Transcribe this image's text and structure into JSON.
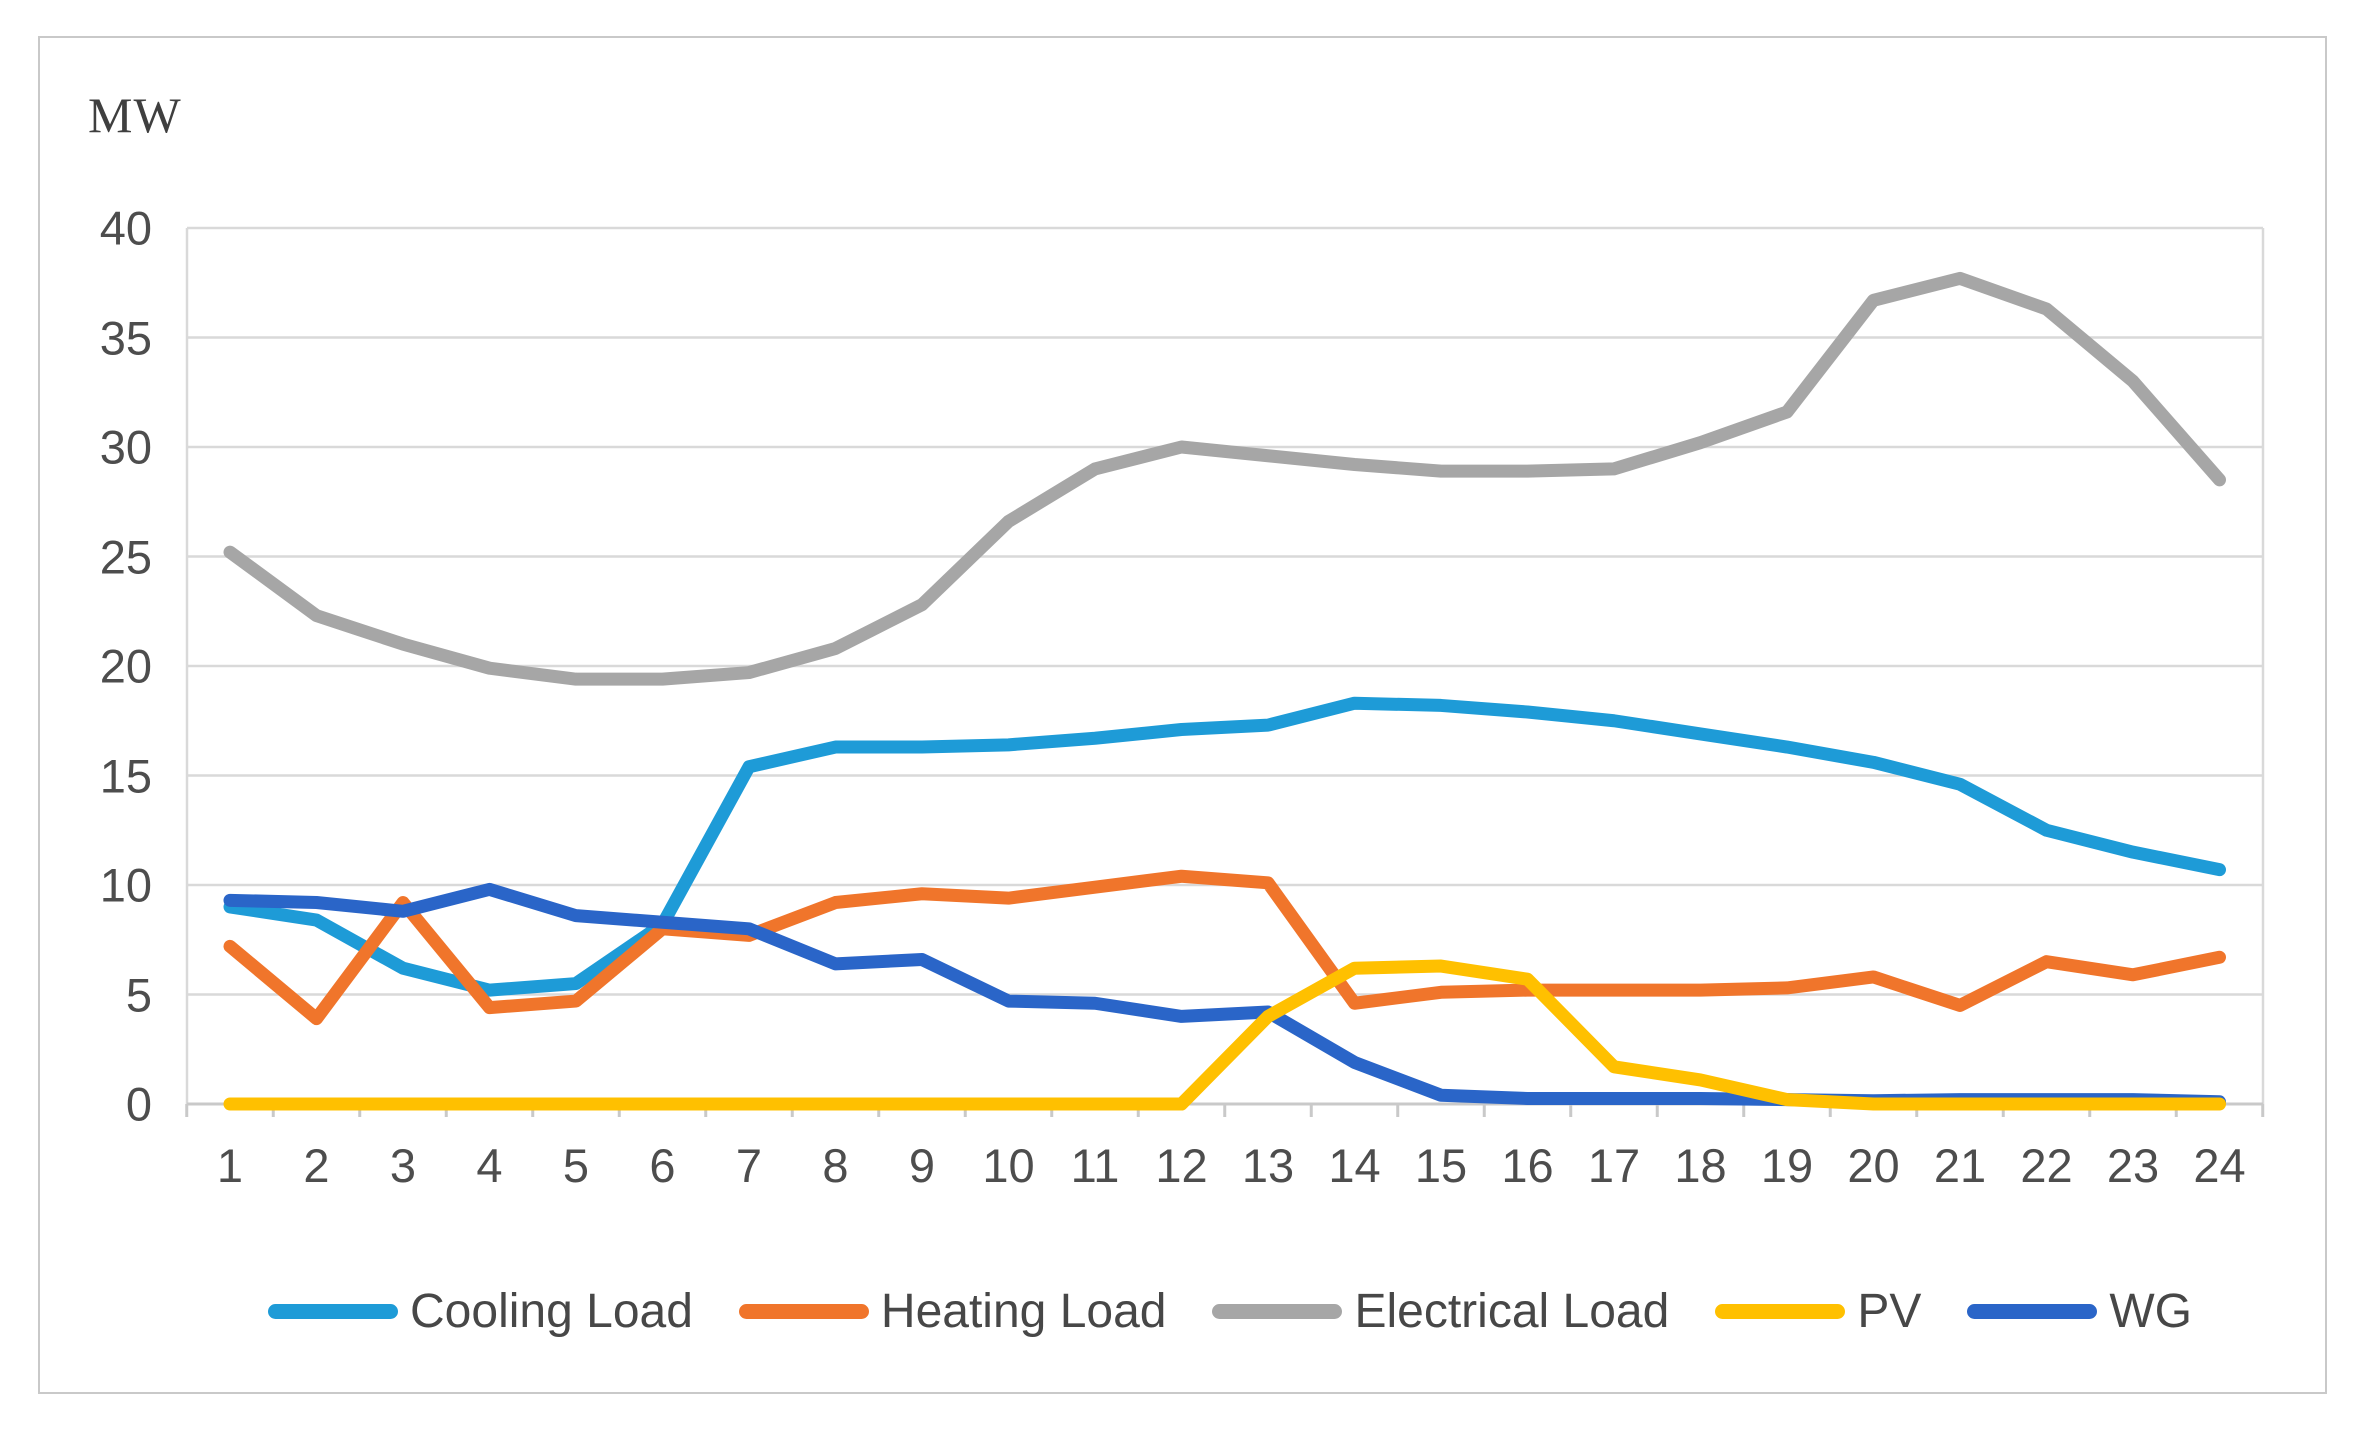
{
  "figure": {
    "border_color": "#c9c9c9",
    "background": "#ffffff"
  },
  "chart_data": {
    "type": "line",
    "title": "",
    "ylabel": "MW",
    "xlabel": "",
    "ylim": [
      0,
      40
    ],
    "ytick_step": 5,
    "yticks": [
      0,
      5,
      10,
      15,
      20,
      25,
      30,
      35,
      40
    ],
    "grid": "horizontal-only",
    "legend_position": "bottom",
    "categories": [
      1,
      2,
      3,
      4,
      5,
      6,
      7,
      8,
      9,
      10,
      11,
      12,
      13,
      14,
      15,
      16,
      17,
      18,
      19,
      20,
      21,
      22,
      23,
      24
    ],
    "series": [
      {
        "name": "Cooling Load",
        "color": "#1e9bd7",
        "values": [
          9.0,
          8.4,
          6.2,
          5.2,
          5.5,
          8.2,
          15.4,
          16.3,
          16.3,
          16.4,
          16.7,
          17.1,
          17.3,
          18.3,
          18.2,
          17.9,
          17.5,
          16.9,
          16.3,
          15.6,
          14.6,
          12.5,
          11.5,
          10.7
        ]
      },
      {
        "name": "Heating Load",
        "color": "#f0752b",
        "values": [
          7.2,
          3.9,
          9.2,
          4.4,
          4.7,
          8.0,
          7.7,
          9.2,
          9.6,
          9.4,
          9.9,
          10.4,
          10.1,
          4.6,
          5.1,
          5.2,
          5.2,
          5.2,
          5.3,
          5.8,
          4.5,
          6.5,
          5.9,
          6.7
        ]
      },
      {
        "name": "Electrical Load",
        "color": "#a6a6a6",
        "values": [
          25.2,
          22.3,
          21.0,
          19.9,
          19.4,
          19.4,
          19.7,
          20.8,
          22.8,
          26.6,
          29.0,
          30.0,
          29.6,
          29.2,
          28.9,
          28.9,
          29.0,
          30.2,
          31.6,
          36.7,
          37.7,
          36.3,
          33.0,
          28.5
        ]
      },
      {
        "name": "PV",
        "color": "#ffc000",
        "values": [
          0,
          0,
          0,
          0,
          0,
          0,
          0,
          0,
          0,
          0,
          0,
          0,
          4.0,
          6.2,
          6.3,
          5.7,
          1.7,
          1.1,
          0.2,
          0,
          0,
          0,
          0,
          0
        ]
      },
      {
        "name": "WG",
        "color": "#2a65c8",
        "values": [
          9.3,
          9.2,
          8.8,
          9.8,
          8.6,
          8.3,
          8.0,
          6.4,
          6.6,
          4.7,
          4.6,
          4.0,
          4.2,
          1.9,
          0.4,
          0.25,
          0.25,
          0.25,
          0.2,
          0.15,
          0.2,
          0.2,
          0.2,
          0.1
        ]
      }
    ],
    "draw_order": [
      "Cooling Load",
      "Heating Load",
      "Electrical Load",
      "WG",
      "PV"
    ],
    "line_width": 13,
    "axis_color": "#c9c9c9",
    "gridline_color": "#d9d9d9",
    "tick_label_color": "#4d4d4d"
  }
}
